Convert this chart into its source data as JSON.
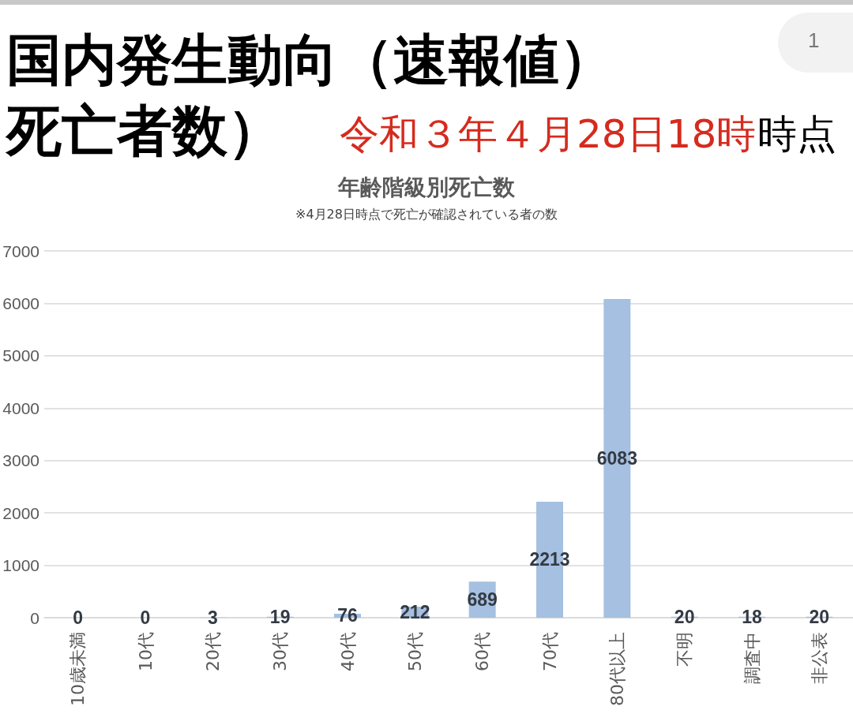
{
  "chart_data": {
    "type": "bar",
    "title": "年齢階級別死亡数",
    "subtitle": "※4月28日時点で死亡が確認されている者の数",
    "annotations": [
      "国内発生動向（速報値）",
      "死亡者数）",
      "令和３年４月28日18時",
      "時点",
      "1"
    ],
    "categories": [
      "10歳未満",
      "10代",
      "20代",
      "30代",
      "40代",
      "50代",
      "60代",
      "70代",
      "80代以上",
      "不明",
      "調査中",
      "非公表"
    ],
    "values": [
      0,
      0,
      3,
      19,
      76,
      212,
      689,
      2213,
      6083,
      20,
      18,
      20
    ],
    "color": "#a5c0e0",
    "ylim": [
      0,
      7000
    ],
    "yticks": [
      0,
      1000,
      2000,
      3000,
      4000,
      5000,
      6000,
      7000
    ],
    "grid": "y",
    "data_labels": true
  }
}
